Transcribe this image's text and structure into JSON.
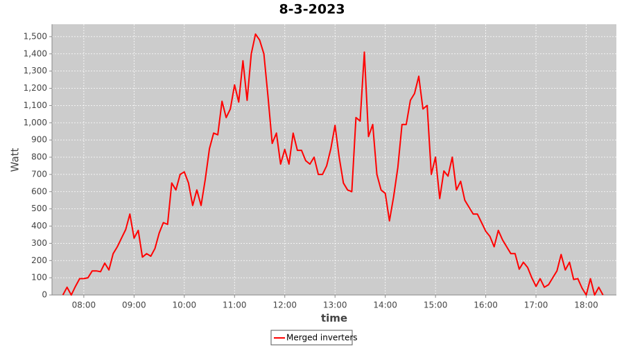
{
  "chart_data": {
    "type": "line",
    "title": "8-3-2023",
    "x_label": "time",
    "y_label": "Watt",
    "x": [
      "07:35",
      "07:40",
      "07:45",
      "07:50",
      "07:55",
      "08:00",
      "08:05",
      "08:10",
      "08:15",
      "08:20",
      "08:25",
      "08:30",
      "08:35",
      "08:40",
      "08:45",
      "08:50",
      "08:55",
      "09:00",
      "09:05",
      "09:10",
      "09:15",
      "09:20",
      "09:25",
      "09:30",
      "09:35",
      "09:40",
      "09:45",
      "09:50",
      "09:55",
      "10:00",
      "10:05",
      "10:10",
      "10:15",
      "10:20",
      "10:25",
      "10:30",
      "10:35",
      "10:40",
      "10:45",
      "10:50",
      "10:55",
      "11:00",
      "11:05",
      "11:10",
      "11:15",
      "11:20",
      "11:25",
      "11:30",
      "11:35",
      "11:40",
      "11:45",
      "11:50",
      "11:55",
      "12:00",
      "12:05",
      "12:10",
      "12:15",
      "12:20",
      "12:25",
      "12:30",
      "12:35",
      "12:40",
      "12:45",
      "12:50",
      "12:55",
      "13:00",
      "13:05",
      "13:10",
      "13:15",
      "13:20",
      "13:25",
      "13:30",
      "13:35",
      "13:40",
      "13:45",
      "13:50",
      "13:55",
      "14:00",
      "14:05",
      "14:10",
      "14:15",
      "14:20",
      "14:25",
      "14:30",
      "14:35",
      "14:40",
      "14:45",
      "14:50",
      "14:55",
      "15:00",
      "15:05",
      "15:10",
      "15:15",
      "15:20",
      "15:25",
      "15:30",
      "15:35",
      "15:40",
      "15:45",
      "15:50",
      "15:55",
      "16:00",
      "16:05",
      "16:10",
      "16:15",
      "16:20",
      "16:25",
      "16:30",
      "16:35",
      "16:40",
      "16:45",
      "16:50",
      "16:55",
      "17:00",
      "17:05",
      "17:10",
      "17:15",
      "17:20",
      "17:25",
      "17:30",
      "17:35",
      "17:40",
      "17:45",
      "17:50",
      "17:55",
      "18:00",
      "18:05",
      "18:10",
      "18:15",
      "18:20"
    ],
    "series": [
      {
        "name": "Merged inverters",
        "color": "#ff0000",
        "values": [
          0,
          45,
          0,
          50,
          95,
          95,
          100,
          140,
          140,
          135,
          185,
          145,
          240,
          280,
          330,
          380,
          470,
          330,
          375,
          220,
          240,
          225,
          270,
          360,
          420,
          410,
          650,
          610,
          700,
          715,
          650,
          520,
          610,
          520,
          670,
          850,
          940,
          930,
          1125,
          1030,
          1080,
          1220,
          1120,
          1360,
          1130,
          1400,
          1515,
          1480,
          1400,
          1150,
          880,
          940,
          760,
          845,
          760,
          940,
          840,
          840,
          780,
          760,
          800,
          700,
          700,
          750,
          850,
          985,
          800,
          650,
          610,
          600,
          1030,
          1010,
          1410,
          920,
          990,
          700,
          610,
          590,
          430,
          570,
          740,
          990,
          990,
          1130,
          1170,
          1270,
          1080,
          1100,
          700,
          800,
          560,
          720,
          690,
          800,
          610,
          660,
          550,
          510,
          470,
          470,
          420,
          370,
          340,
          280,
          375,
          320,
          280,
          240,
          240,
          150,
          190,
          160,
          100,
          50,
          95,
          45,
          60,
          100,
          140,
          235,
          145,
          190,
          90,
          95,
          40,
          0,
          95,
          0,
          45,
          0
        ]
      }
    ],
    "xlim": [
      "07:22",
      "18:36"
    ],
    "xticks": [
      "08:00",
      "09:00",
      "10:00",
      "11:00",
      "12:00",
      "13:00",
      "14:00",
      "15:00",
      "16:00",
      "17:00",
      "18:00"
    ],
    "ylim": [
      0,
      1572
    ],
    "yticks": [
      0,
      100,
      200,
      300,
      400,
      500,
      600,
      700,
      800,
      900,
      {
        "value": 1000,
        "label": "1,000"
      },
      {
        "value": 1100,
        "label": "1,100"
      },
      {
        "value": 1200,
        "label": "1,200"
      },
      {
        "value": 1300,
        "label": "1,300"
      },
      {
        "value": 1400,
        "label": "1,400"
      },
      {
        "value": 1500,
        "label": "1,500"
      }
    ],
    "grid": true
  }
}
